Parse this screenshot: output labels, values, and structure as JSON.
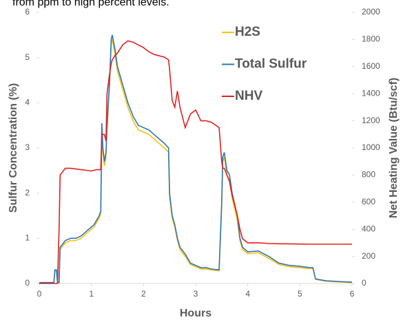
{
  "chart_data": {
    "type": "line",
    "subtitle": "from ppm to high percent levels.",
    "x_label": "Hours",
    "y_label": "Sulfur Concentration (%)",
    "y2_label": "Net Heating Value (Btu/scf)",
    "xlim": [
      0,
      6
    ],
    "xticks": [
      0,
      1,
      2,
      3,
      4,
      5,
      6
    ],
    "ylim": [
      0,
      6
    ],
    "yticks": [
      0,
      1,
      2,
      3,
      4,
      5,
      6
    ],
    "y2lim": [
      0,
      2000
    ],
    "y2ticks": [
      0,
      200,
      400,
      600,
      800,
      1000,
      1200,
      1400,
      1600,
      1800,
      2000
    ],
    "grid": false,
    "legend": "upper center",
    "x": [
      0,
      0.28,
      0.3,
      0.33,
      0.35,
      0.38,
      0.4,
      0.5,
      0.6,
      0.7,
      0.8,
      0.9,
      1.0,
      1.05,
      1.1,
      1.15,
      1.18,
      1.2,
      1.22,
      1.25,
      1.28,
      1.3,
      1.35,
      1.38,
      1.4,
      1.45,
      1.5,
      1.6,
      1.7,
      1.8,
      1.9,
      2.0,
      2.1,
      2.2,
      2.3,
      2.4,
      2.48,
      2.5,
      2.55,
      2.6,
      2.65,
      2.7,
      2.8,
      2.9,
      3.0,
      3.1,
      3.2,
      3.3,
      3.45,
      3.5,
      3.52,
      3.55,
      3.6,
      3.65,
      3.7,
      3.8,
      3.85,
      3.9,
      4.0,
      4.2,
      4.4,
      4.6,
      4.8,
      5.0,
      5.2,
      5.25,
      5.3,
      5.5,
      5.8,
      6.0
    ],
    "series": [
      {
        "name": "H2S",
        "color": "#ffc000",
        "axis": "y",
        "values": [
          0.02,
          0.02,
          0.28,
          0.28,
          0.02,
          0.02,
          0.75,
          0.9,
          0.95,
          0.95,
          1.0,
          1.1,
          1.2,
          1.25,
          1.35,
          1.45,
          1.55,
          3.3,
          2.9,
          2.6,
          2.8,
          3.4,
          4.4,
          5.3,
          5.4,
          5.1,
          4.7,
          4.3,
          3.9,
          3.6,
          3.4,
          3.35,
          3.3,
          3.2,
          3.1,
          3.0,
          2.9,
          1.9,
          1.45,
          1.25,
          0.95,
          0.75,
          0.6,
          0.42,
          0.37,
          0.32,
          0.32,
          0.3,
          0.28,
          1.7,
          2.7,
          2.8,
          2.4,
          2.3,
          1.9,
          1.4,
          0.95,
          0.75,
          0.66,
          0.68,
          0.56,
          0.42,
          0.37,
          0.35,
          0.33,
          0.33,
          0.09,
          0.05,
          0.03,
          0.02
        ]
      },
      {
        "name": "Total Sulfur",
        "color": "#2e75b6",
        "axis": "y",
        "values": [
          0.02,
          0.02,
          0.3,
          0.3,
          0.02,
          0.02,
          0.8,
          0.95,
          1.0,
          1.0,
          1.05,
          1.15,
          1.25,
          1.3,
          1.4,
          1.5,
          1.6,
          3.55,
          3.0,
          2.7,
          2.9,
          3.5,
          4.5,
          5.4,
          5.5,
          5.2,
          4.8,
          4.4,
          4.0,
          3.7,
          3.5,
          3.45,
          3.4,
          3.3,
          3.2,
          3.1,
          3.0,
          2.0,
          1.5,
          1.3,
          1.0,
          0.8,
          0.65,
          0.45,
          0.4,
          0.35,
          0.35,
          0.32,
          0.3,
          1.8,
          2.8,
          2.9,
          2.5,
          2.4,
          2.0,
          1.5,
          1.0,
          0.8,
          0.7,
          0.72,
          0.6,
          0.45,
          0.4,
          0.38,
          0.35,
          0.35,
          0.1,
          0.06,
          0.04,
          0.03
        ]
      },
      {
        "name": "NHV",
        "color": "#e0201e",
        "axis": "y2",
        "values": [
          0,
          0,
          0,
          0,
          0,
          400,
          800,
          850,
          850,
          845,
          840,
          835,
          830,
          835,
          840,
          840,
          840,
          1100,
          1100,
          1100,
          1050,
          1400,
          1550,
          1620,
          1650,
          1680,
          1700,
          1760,
          1790,
          1780,
          1760,
          1740,
          1710,
          1690,
          1680,
          1670,
          1650,
          1580,
          1350,
          1300,
          1420,
          1300,
          1150,
          1250,
          1280,
          1200,
          1200,
          1190,
          1150,
          900,
          850,
          850,
          800,
          750,
          650,
          500,
          400,
          330,
          300,
          300,
          295,
          293,
          292,
          291,
          290,
          290,
          290,
          290,
          290,
          290
        ]
      }
    ]
  }
}
